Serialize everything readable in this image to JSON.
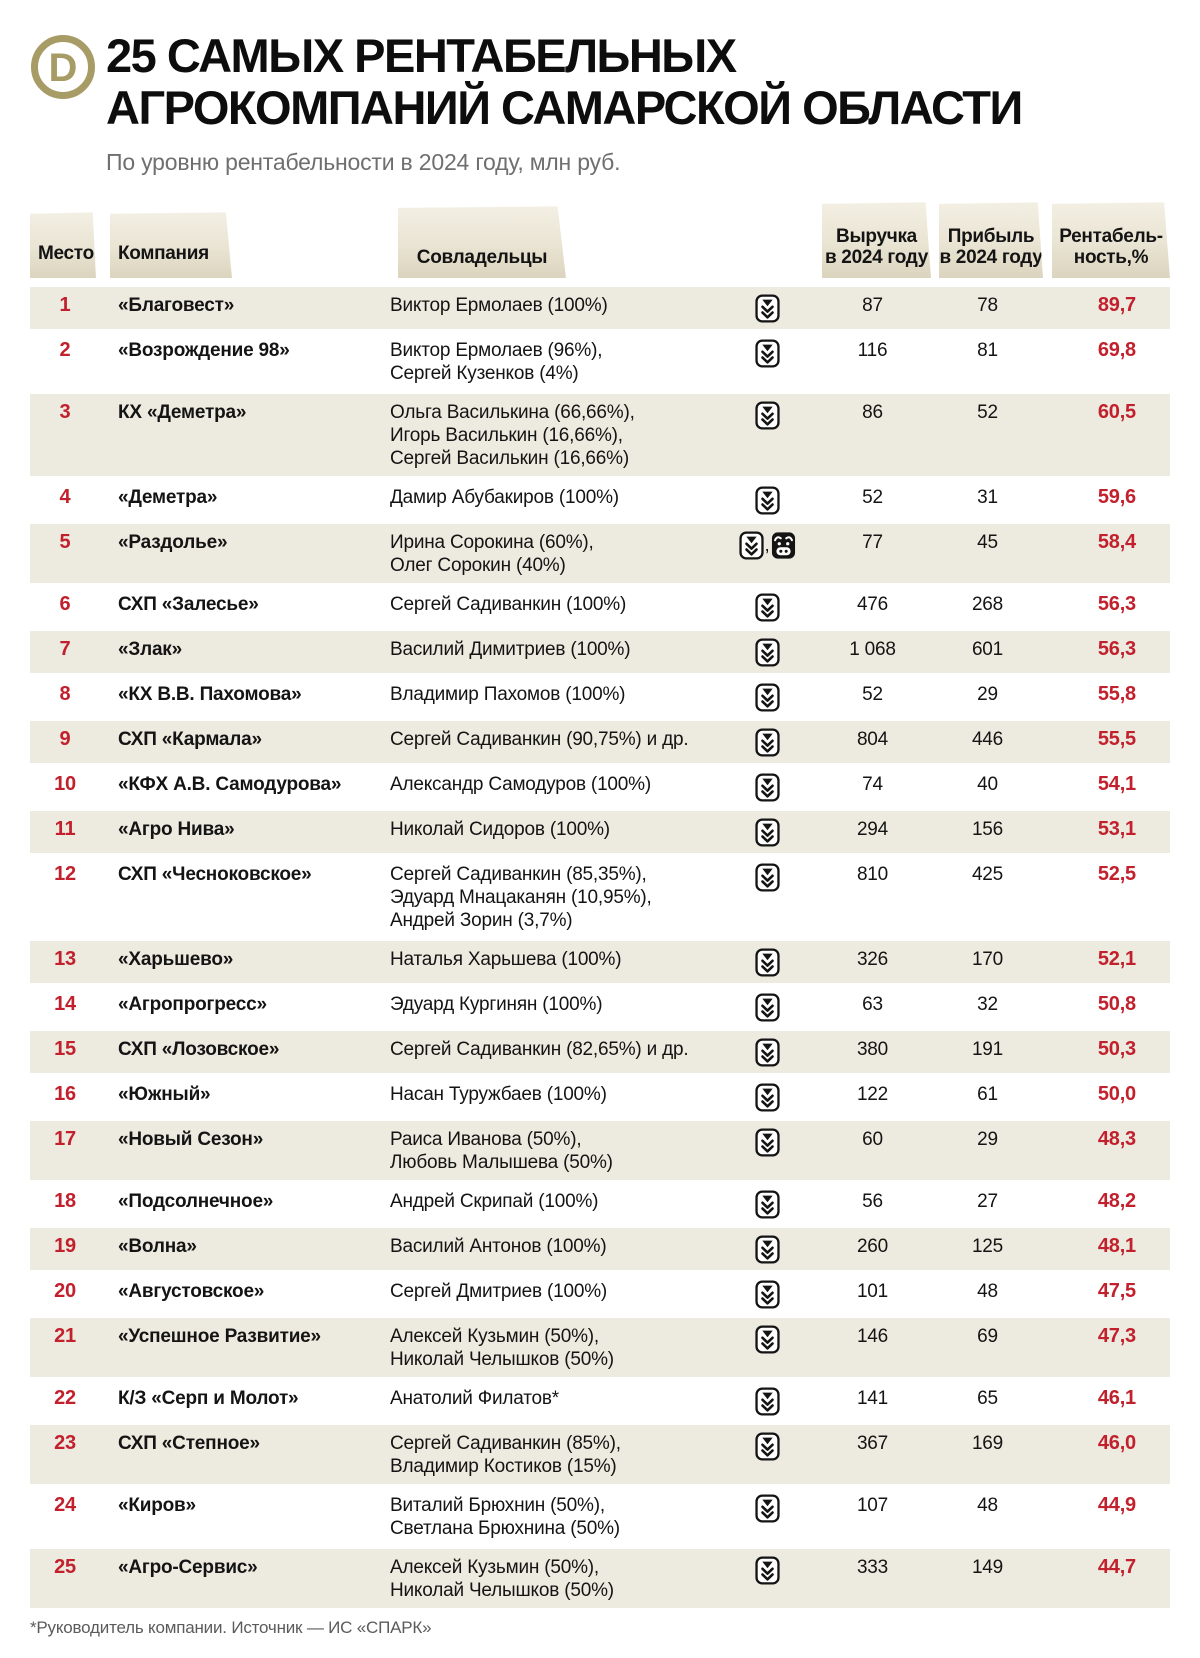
{
  "header": {
    "logo_letter": "D",
    "title_line1": "25 САМЫХ РЕНТАБЕЛЬНЫХ",
    "title_line2": "АГРОКОМПАНИЙ САМАРСКОЙ ОБЛАСТИ",
    "subtitle": "По уровню рентабельности в 2024 году, млн руб."
  },
  "columns": {
    "place": "Место",
    "company": "Компания",
    "owners": "Совладельцы",
    "revenue_line1": "Выручка",
    "revenue_line2": "в 2024 году",
    "profit_line1": "Прибыль",
    "profit_line2": "в 2024 году",
    "margin_line1": "Рентабель-",
    "margin_line2": "ность,%"
  },
  "colors": {
    "accent_red": "#c2202c",
    "row_beige": "#edeadf",
    "tab_beige_top": "#f3efe3",
    "tab_beige_bottom": "#dbd4be",
    "logo_gold": "#a89c66"
  },
  "icon_legend": {
    "wheat": "crop-farming-icon",
    "cow": "livestock-icon"
  },
  "chart_data": {
    "type": "table",
    "title": "25 САМЫХ РЕНТАБЕЛЬНЫХ АГРОКОМПАНИЙ САМАРСКОЙ ОБЛАСТИ",
    "subtitle": "По уровню рентабельности в 2024 году, млн руб.",
    "columns": [
      "Место",
      "Компания",
      "Совладельцы",
      "Выручка в 2024 году",
      "Прибыль в 2024 году",
      "Рентабельность,%"
    ],
    "rows": [
      {
        "rank": "1",
        "company": "«Благовест»",
        "owners": [
          "Виктор Ермолаев (100%)"
        ],
        "icons": [
          "wheat"
        ],
        "revenue": "87",
        "profit": "78",
        "margin": "89,7"
      },
      {
        "rank": "2",
        "company": "«Возрождение 98»",
        "owners": [
          "Виктор Ермолаев (96%),",
          "Сергей Кузенков (4%)"
        ],
        "icons": [
          "wheat"
        ],
        "revenue": "116",
        "profit": "81",
        "margin": "69,8"
      },
      {
        "rank": "3",
        "company": "КХ «Деметра»",
        "owners": [
          "Ольга Василькина (66,66%),",
          "Игорь Василькин (16,66%),",
          "Сергей Василькин (16,66%)"
        ],
        "icons": [
          "wheat"
        ],
        "revenue": "86",
        "profit": "52",
        "margin": "60,5"
      },
      {
        "rank": "4",
        "company": "«Деметра»",
        "owners": [
          "Дамир Абубакиров (100%)"
        ],
        "icons": [
          "wheat"
        ],
        "revenue": "52",
        "profit": "31",
        "margin": "59,6"
      },
      {
        "rank": "5",
        "company": "«Раздолье»",
        "owners": [
          "Ирина Сорокина (60%),",
          "Олег Сорокин (40%)"
        ],
        "icons": [
          "wheat",
          "cow"
        ],
        "revenue": "77",
        "profit": "45",
        "margin": "58,4"
      },
      {
        "rank": "6",
        "company": "СХП «Залесье»",
        "owners": [
          "Сергей Садиванкин (100%)"
        ],
        "icons": [
          "wheat"
        ],
        "revenue": "476",
        "profit": "268",
        "margin": "56,3"
      },
      {
        "rank": "7",
        "company": "«Злак»",
        "owners": [
          "Василий Димитриев (100%)"
        ],
        "icons": [
          "wheat"
        ],
        "revenue": "1 068",
        "profit": "601",
        "margin": "56,3"
      },
      {
        "rank": "8",
        "company": "«КХ В.В. Пахомова»",
        "owners": [
          "Владимир Пахомов (100%)"
        ],
        "icons": [
          "wheat"
        ],
        "revenue": "52",
        "profit": "29",
        "margin": "55,8"
      },
      {
        "rank": "9",
        "company": "СХП «Кармала»",
        "owners": [
          "Сергей Садиванкин (90,75%) и др."
        ],
        "icons": [
          "wheat"
        ],
        "revenue": "804",
        "profit": "446",
        "margin": "55,5"
      },
      {
        "rank": "10",
        "company": "«КФХ А.В. Самодурова»",
        "owners": [
          "Александр Самодуров (100%)"
        ],
        "icons": [
          "wheat"
        ],
        "revenue": "74",
        "profit": "40",
        "margin": "54,1"
      },
      {
        "rank": "11",
        "company": "«Агро Нива»",
        "owners": [
          "Николай Сидоров (100%)"
        ],
        "icons": [
          "wheat"
        ],
        "revenue": "294",
        "profit": "156",
        "margin": "53,1"
      },
      {
        "rank": "12",
        "company": "СХП «Чесноковское»",
        "owners": [
          "Сергей Садиванкин (85,35%),",
          "Эдуард Мнацаканян (10,95%),",
          "Андрей Зорин (3,7%)"
        ],
        "icons": [
          "wheat"
        ],
        "revenue": "810",
        "profit": "425",
        "margin": "52,5"
      },
      {
        "rank": "13",
        "company": "«Харьшево»",
        "owners": [
          "Наталья Харьшева (100%)"
        ],
        "icons": [
          "wheat"
        ],
        "revenue": "326",
        "profit": "170",
        "margin": "52,1"
      },
      {
        "rank": "14",
        "company": "«Агропрогресс»",
        "owners": [
          "Эдуард Кургинян (100%)"
        ],
        "icons": [
          "wheat"
        ],
        "revenue": "63",
        "profit": "32",
        "margin": "50,8"
      },
      {
        "rank": "15",
        "company": "СХП «Лозовское»",
        "owners": [
          "Сергей Садиванкин (82,65%) и др."
        ],
        "icons": [
          "wheat"
        ],
        "revenue": "380",
        "profit": "191",
        "margin": "50,3"
      },
      {
        "rank": "16",
        "company": "«Южный»",
        "owners": [
          "Насан Туружбаев (100%)"
        ],
        "icons": [
          "wheat"
        ],
        "revenue": "122",
        "profit": "61",
        "margin": "50,0"
      },
      {
        "rank": "17",
        "company": "«Новый Сезон»",
        "owners": [
          "Раиса Иванова (50%),",
          "Любовь Малышева (50%)"
        ],
        "icons": [
          "wheat"
        ],
        "revenue": "60",
        "profit": "29",
        "margin": "48,3"
      },
      {
        "rank": "18",
        "company": "«Подсолнечное»",
        "owners": [
          "Андрей Скрипай (100%)"
        ],
        "icons": [
          "wheat"
        ],
        "revenue": "56",
        "profit": "27",
        "margin": "48,2"
      },
      {
        "rank": "19",
        "company": "«Волна»",
        "owners": [
          "Василий Антонов (100%)"
        ],
        "icons": [
          "wheat"
        ],
        "revenue": "260",
        "profit": "125",
        "margin": "48,1"
      },
      {
        "rank": "20",
        "company": "«Августовское»",
        "owners": [
          "Сергей Дмитриев (100%)"
        ],
        "icons": [
          "wheat"
        ],
        "revenue": "101",
        "profit": "48",
        "margin": "47,5"
      },
      {
        "rank": "21",
        "company": "«Успешное Развитие»",
        "owners": [
          "Алексей Кузьмин (50%),",
          "Николай Челышков (50%)"
        ],
        "icons": [
          "wheat"
        ],
        "revenue": "146",
        "profit": "69",
        "margin": "47,3"
      },
      {
        "rank": "22",
        "company": "К/З «Серп и Молот»",
        "owners": [
          "Анатолий Филатов*"
        ],
        "icons": [
          "wheat"
        ],
        "revenue": "141",
        "profit": "65",
        "margin": "46,1"
      },
      {
        "rank": "23",
        "company": "СХП «Степное»",
        "owners": [
          "Сергей Садиванкин (85%),",
          "Владимир Костиков (15%)"
        ],
        "icons": [
          "wheat"
        ],
        "revenue": "367",
        "profit": "169",
        "margin": "46,0"
      },
      {
        "rank": "24",
        "company": "«Киров»",
        "owners": [
          "Виталий Брюхнин (50%),",
          "Светлана Брюхнина (50%)"
        ],
        "icons": [
          "wheat"
        ],
        "revenue": "107",
        "profit": "48",
        "margin": "44,9"
      },
      {
        "rank": "25",
        "company": "«Агро-Сервис»",
        "owners": [
          "Алексей Кузьмин (50%),",
          "Николай Челышков (50%)"
        ],
        "icons": [
          "wheat"
        ],
        "revenue": "333",
        "profit": "149",
        "margin": "44,7"
      }
    ]
  },
  "footnote": "*Руководитель компании. Источник — ИС «СПАРК»"
}
